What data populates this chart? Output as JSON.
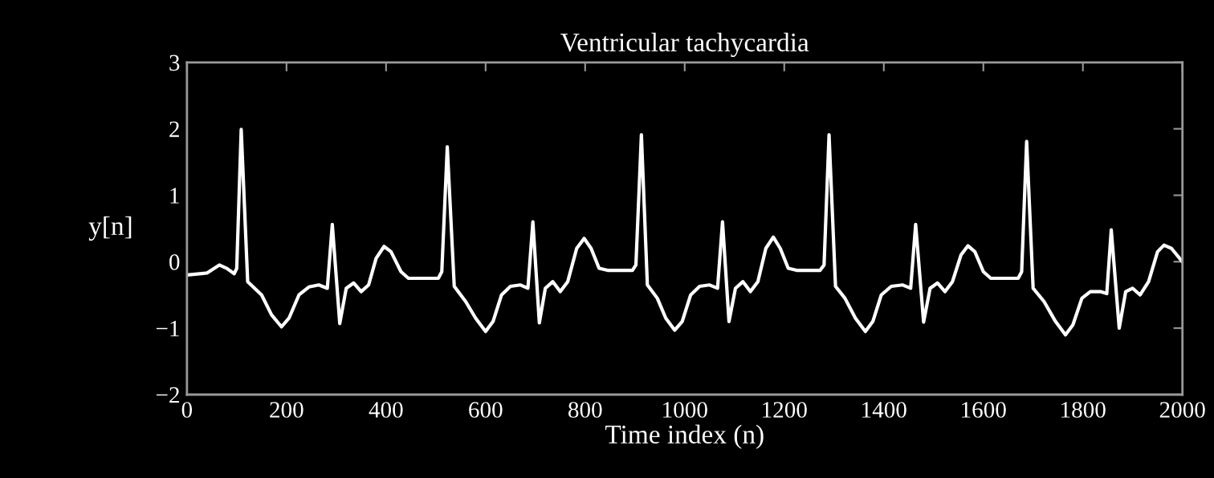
{
  "chart_data": {
    "type": "line",
    "title": "Ventricular tachycardia",
    "xlabel": "Time index (n)",
    "ylabel": "y[n]",
    "x": [
      0,
      40,
      65,
      80,
      95,
      100,
      109,
      122,
      150,
      170,
      190,
      205,
      225,
      245,
      265,
      282,
      292,
      307,
      320,
      335,
      350,
      365,
      380,
      396,
      410,
      430,
      445,
      505,
      512,
      523,
      537,
      560,
      580,
      600,
      615,
      632,
      650,
      670,
      685,
      695,
      708,
      720,
      735,
      750,
      765,
      783,
      798,
      812,
      828,
      845,
      895,
      902,
      913,
      925,
      945,
      962,
      980,
      995,
      1012,
      1030,
      1050,
      1066,
      1076,
      1089,
      1102,
      1117,
      1132,
      1147,
      1163,
      1178,
      1192,
      1208,
      1225,
      1272,
      1280,
      1290,
      1303,
      1322,
      1343,
      1363,
      1378,
      1395,
      1415,
      1438,
      1454,
      1464,
      1480,
      1493,
      1508,
      1523,
      1538,
      1555,
      1569,
      1583,
      1600,
      1615,
      1670,
      1677,
      1687,
      1700,
      1722,
      1745,
      1765,
      1780,
      1798,
      1815,
      1835,
      1848,
      1857,
      1873,
      1886,
      1900,
      1915,
      1932,
      1950,
      1963,
      1978,
      2000
    ],
    "series": [
      {
        "color": "#ffffff",
        "values": [
          -0.2,
          -0.17,
          -0.05,
          -0.1,
          -0.18,
          -0.1,
          1.99,
          -0.3,
          -0.5,
          -0.8,
          -0.98,
          -0.85,
          -0.5,
          -0.38,
          -0.35,
          -0.4,
          0.56,
          -0.93,
          -0.4,
          -0.32,
          -0.45,
          -0.35,
          0.05,
          0.23,
          0.15,
          -0.15,
          -0.25,
          -0.25,
          -0.15,
          1.73,
          -0.37,
          -0.6,
          -0.85,
          -1.05,
          -0.9,
          -0.5,
          -0.37,
          -0.35,
          -0.4,
          0.6,
          -0.92,
          -0.4,
          -0.3,
          -0.45,
          -0.3,
          0.2,
          0.35,
          0.2,
          -0.1,
          -0.13,
          -0.13,
          -0.05,
          1.91,
          -0.35,
          -0.55,
          -0.85,
          -1.03,
          -0.9,
          -0.5,
          -0.37,
          -0.35,
          -0.4,
          0.6,
          -0.9,
          -0.4,
          -0.3,
          -0.45,
          -0.3,
          0.2,
          0.37,
          0.2,
          -0.1,
          -0.13,
          -0.13,
          -0.05,
          1.91,
          -0.37,
          -0.55,
          -0.85,
          -1.05,
          -0.9,
          -0.5,
          -0.37,
          -0.35,
          -0.4,
          0.56,
          -0.91,
          -0.4,
          -0.32,
          -0.45,
          -0.3,
          0.1,
          0.24,
          0.15,
          -0.15,
          -0.25,
          -0.25,
          -0.15,
          1.81,
          -0.4,
          -0.6,
          -0.9,
          -1.1,
          -0.95,
          -0.55,
          -0.45,
          -0.45,
          -0.48,
          0.48,
          -1.0,
          -0.45,
          -0.4,
          -0.5,
          -0.3,
          0.15,
          0.25,
          0.2,
          0.0
        ]
      }
    ],
    "xlim": [
      0,
      2000
    ],
    "xticks": [
      0,
      200,
      400,
      600,
      800,
      1000,
      1200,
      1400,
      1600,
      1800,
      2000
    ],
    "ylim": [
      -2,
      3
    ],
    "yticks": [
      {
        "value": -2,
        "label": "−2"
      },
      {
        "value": -1,
        "label": "−1"
      },
      0,
      1,
      2,
      3
    ],
    "grid": false
  }
}
